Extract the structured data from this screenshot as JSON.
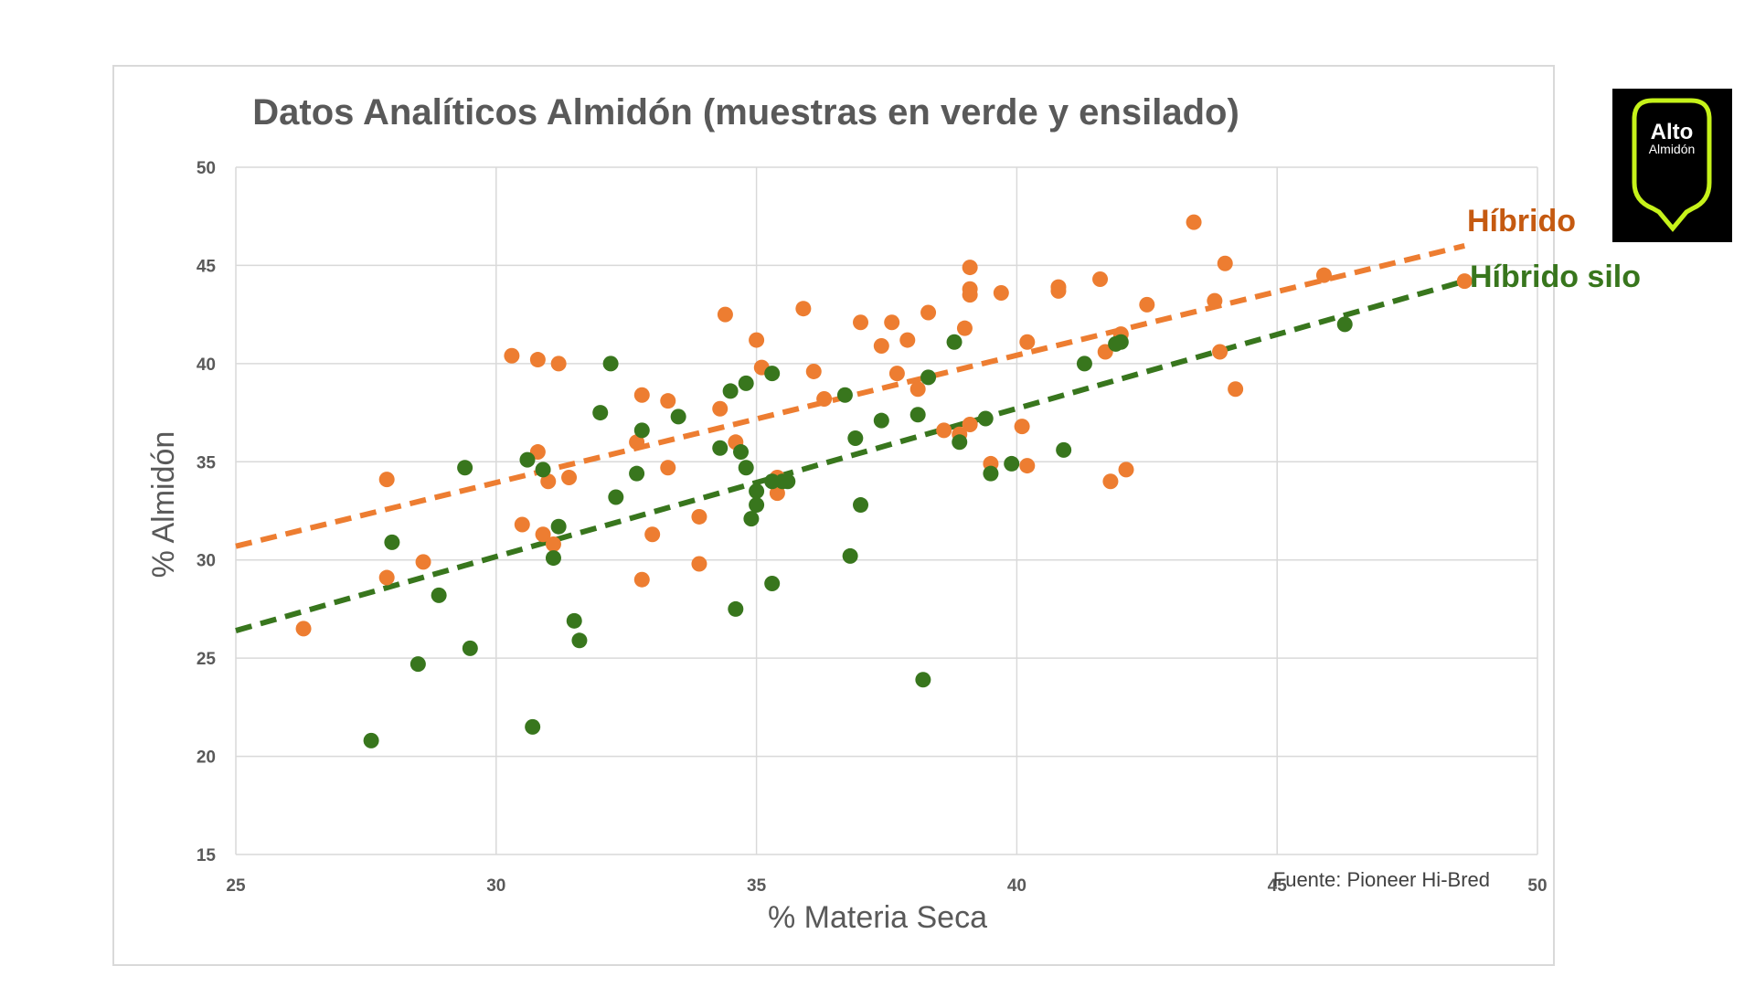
{
  "chart_data": {
    "type": "scatter",
    "title": "Datos Analíticos Almidón (muestras en verde y ensilado)",
    "xlabel": "% Materia Seca",
    "ylabel": "% Almidón",
    "xlim": [
      25,
      50
    ],
    "ylim": [
      15,
      50
    ],
    "xticks": [
      "25",
      "30",
      "35",
      "40",
      "45",
      "50"
    ],
    "yticks": [
      "15",
      "20",
      "25",
      "30",
      "35",
      "40",
      "45",
      "50"
    ],
    "grid": true,
    "source_note": "Fuente: Pioneer Hi-Bred",
    "colors": {
      "hibrido": "#ed7d31",
      "silo": "#38761d"
    },
    "series": [
      {
        "name": "Híbrido",
        "color": "#ed7d31",
        "trendline": {
          "x": [
            25,
            48.6
          ],
          "y": [
            30.7,
            46.0
          ]
        },
        "points": [
          [
            26.3,
            26.5
          ],
          [
            27.9,
            34.1
          ],
          [
            27.9,
            29.1
          ],
          [
            28.6,
            29.9
          ],
          [
            30.3,
            40.4
          ],
          [
            30.5,
            31.8
          ],
          [
            30.8,
            35.5
          ],
          [
            30.8,
            40.2
          ],
          [
            30.9,
            31.3
          ],
          [
            31.0,
            34.0
          ],
          [
            31.1,
            30.8
          ],
          [
            31.2,
            40.0
          ],
          [
            31.4,
            34.2
          ],
          [
            32.7,
            36.0
          ],
          [
            32.8,
            38.4
          ],
          [
            32.8,
            29.0
          ],
          [
            33.0,
            31.3
          ],
          [
            33.3,
            38.1
          ],
          [
            33.3,
            34.7
          ],
          [
            33.9,
            32.2
          ],
          [
            33.9,
            29.8
          ],
          [
            34.3,
            37.7
          ],
          [
            34.4,
            42.5
          ],
          [
            34.6,
            36.0
          ],
          [
            35.0,
            41.2
          ],
          [
            35.1,
            39.8
          ],
          [
            35.4,
            34.2
          ],
          [
            35.4,
            33.4
          ],
          [
            35.9,
            42.8
          ],
          [
            36.1,
            39.6
          ],
          [
            36.3,
            38.2
          ],
          [
            37.0,
            42.1
          ],
          [
            37.4,
            40.9
          ],
          [
            37.6,
            42.1
          ],
          [
            37.7,
            39.5
          ],
          [
            37.9,
            41.2
          ],
          [
            38.1,
            38.7
          ],
          [
            38.3,
            42.6
          ],
          [
            38.6,
            36.6
          ],
          [
            38.9,
            36.4
          ],
          [
            39.0,
            41.8
          ],
          [
            39.1,
            44.9
          ],
          [
            39.1,
            43.8
          ],
          [
            39.1,
            43.5
          ],
          [
            39.1,
            36.9
          ],
          [
            39.5,
            34.9
          ],
          [
            39.7,
            43.6
          ],
          [
            40.1,
            36.8
          ],
          [
            40.2,
            34.8
          ],
          [
            40.2,
            41.1
          ],
          [
            40.8,
            43.9
          ],
          [
            40.8,
            43.7
          ],
          [
            41.6,
            44.3
          ],
          [
            41.7,
            40.6
          ],
          [
            41.8,
            34.0
          ],
          [
            42.0,
            41.5
          ],
          [
            42.1,
            34.6
          ],
          [
            42.5,
            43.0
          ],
          [
            43.4,
            47.2
          ],
          [
            43.8,
            43.2
          ],
          [
            43.9,
            40.6
          ],
          [
            44.0,
            45.1
          ],
          [
            44.2,
            38.7
          ],
          [
            45.9,
            44.5
          ],
          [
            48.6,
            44.2
          ]
        ]
      },
      {
        "name": "Híbrido silo",
        "color": "#38761d",
        "trendline": {
          "x": [
            25,
            48.6
          ],
          "y": [
            26.4,
            44.2
          ]
        },
        "points": [
          [
            27.6,
            20.8
          ],
          [
            28.0,
            30.9
          ],
          [
            28.5,
            24.7
          ],
          [
            28.9,
            28.2
          ],
          [
            29.4,
            34.7
          ],
          [
            29.5,
            25.5
          ],
          [
            30.6,
            35.1
          ],
          [
            30.7,
            21.5
          ],
          [
            30.9,
            34.6
          ],
          [
            31.1,
            30.1
          ],
          [
            31.2,
            31.7
          ],
          [
            31.5,
            26.9
          ],
          [
            31.6,
            25.9
          ],
          [
            32.0,
            37.5
          ],
          [
            32.2,
            40.0
          ],
          [
            32.3,
            33.2
          ],
          [
            32.7,
            34.4
          ],
          [
            32.8,
            36.6
          ],
          [
            33.5,
            37.3
          ],
          [
            34.3,
            35.7
          ],
          [
            34.5,
            38.6
          ],
          [
            34.6,
            27.5
          ],
          [
            34.7,
            35.5
          ],
          [
            34.8,
            34.7
          ],
          [
            34.8,
            39.0
          ],
          [
            34.9,
            32.1
          ],
          [
            35.0,
            32.8
          ],
          [
            35.0,
            33.5
          ],
          [
            35.3,
            39.5
          ],
          [
            35.3,
            34.0
          ],
          [
            35.3,
            28.8
          ],
          [
            35.5,
            34.0
          ],
          [
            35.6,
            34.0
          ],
          [
            36.7,
            38.4
          ],
          [
            36.8,
            30.2
          ],
          [
            36.9,
            36.2
          ],
          [
            37.0,
            32.8
          ],
          [
            37.4,
            37.1
          ],
          [
            38.1,
            37.4
          ],
          [
            38.2,
            23.9
          ],
          [
            38.3,
            39.3
          ],
          [
            38.8,
            41.1
          ],
          [
            38.9,
            36.0
          ],
          [
            39.4,
            37.2
          ],
          [
            39.5,
            34.4
          ],
          [
            39.9,
            34.9
          ],
          [
            40.9,
            35.6
          ],
          [
            41.3,
            40.0
          ],
          [
            41.9,
            41.0
          ],
          [
            42.0,
            41.1
          ],
          [
            46.3,
            42.0
          ]
        ]
      }
    ]
  },
  "legend_labels": {
    "hibrido": "Híbrido",
    "silo": "Híbrido silo"
  },
  "logo": {
    "line1": "Alto",
    "line2": "Almidón"
  }
}
